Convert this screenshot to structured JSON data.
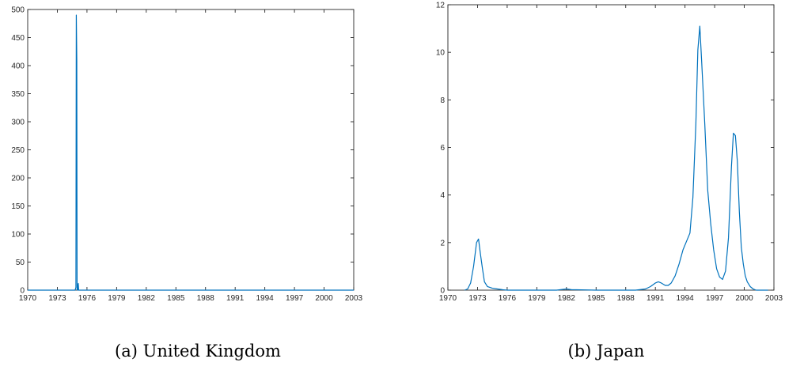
{
  "chart_data": [
    {
      "type": "line",
      "panel_id": "uk",
      "caption": "(a) United Kingdom",
      "title": "",
      "xlabel": "",
      "ylabel": "",
      "xlim": [
        1970,
        2003
      ],
      "ylim": [
        0,
        500
      ],
      "xticks": [
        "1970",
        "1973",
        "1976",
        "1979",
        "1982",
        "1985",
        "1988",
        "1991",
        "1994",
        "1997",
        "2000",
        "2003"
      ],
      "yticks": [
        "0",
        "50",
        "100",
        "150",
        "200",
        "250",
        "300",
        "350",
        "400",
        "450",
        "500"
      ],
      "grid": false,
      "color": "#0072BD",
      "x": [
        1970,
        1974.8,
        1974.88,
        1974.92,
        1974.97,
        1975.0,
        1975.04,
        1975.08,
        1975.12,
        1975.16,
        1975.25,
        2003
      ],
      "y": [
        0,
        0,
        5,
        490,
        410,
        0,
        10,
        0,
        12,
        0,
        0,
        0
      ]
    },
    {
      "type": "line",
      "panel_id": "japan",
      "caption": "(b) Japan",
      "title": "",
      "xlabel": "",
      "ylabel": "",
      "xlim": [
        1970,
        2003
      ],
      "ylim": [
        0,
        12
      ],
      "xticks": [
        "1970",
        "1973",
        "1976",
        "1979",
        "1982",
        "1985",
        "1988",
        "1991",
        "1994",
        "1997",
        "2000",
        "2003"
      ],
      "yticks": [
        "0",
        "2",
        "4",
        "6",
        "8",
        "10",
        "12"
      ],
      "grid": false,
      "color": "#0072BD",
      "x": [
        1971.7,
        1972.0,
        1972.3,
        1972.6,
        1972.9,
        1973.1,
        1973.3,
        1973.5,
        1973.7,
        1974.0,
        1974.5,
        1975.0,
        1975.5,
        1976.0,
        1979.0,
        1981.0,
        1982.0,
        1982.5,
        1985.0,
        1988.0,
        1989.0,
        1990.0,
        1990.5,
        1991.0,
        1991.3,
        1991.6,
        1992.0,
        1992.3,
        1992.6,
        1993.0,
        1993.4,
        1993.8,
        1994.2,
        1994.5,
        1994.8,
        1995.1,
        1995.3,
        1995.5,
        1995.7,
        1996.0,
        1996.3,
        1996.6,
        1996.9,
        1997.2,
        1997.5,
        1997.8,
        1998.1,
        1998.4,
        1998.7,
        1998.9,
        1999.1,
        1999.3,
        1999.5,
        1999.7,
        1999.9,
        2000.1,
        2000.3,
        2000.6,
        2000.9,
        2001.2,
        2001.5,
        2001.8,
        2002.1,
        2002.4
      ],
      "y": [
        0.0,
        0.05,
        0.3,
        1.0,
        2.0,
        2.15,
        1.5,
        0.9,
        0.35,
        0.15,
        0.08,
        0.05,
        0.02,
        0.0,
        0.0,
        0.0,
        0.05,
        0.02,
        0.0,
        0.0,
        0.0,
        0.05,
        0.15,
        0.3,
        0.35,
        0.3,
        0.2,
        0.2,
        0.3,
        0.6,
        1.1,
        1.7,
        2.1,
        2.4,
        3.9,
        7.0,
        10.1,
        11.1,
        9.5,
        7.0,
        4.2,
        2.8,
        1.7,
        0.9,
        0.55,
        0.45,
        0.8,
        2.2,
        5.2,
        6.6,
        6.5,
        5.4,
        3.3,
        1.8,
        1.1,
        0.6,
        0.35,
        0.15,
        0.05,
        0.0,
        0.0,
        0.0,
        0.0,
        0.0
      ]
    }
  ]
}
